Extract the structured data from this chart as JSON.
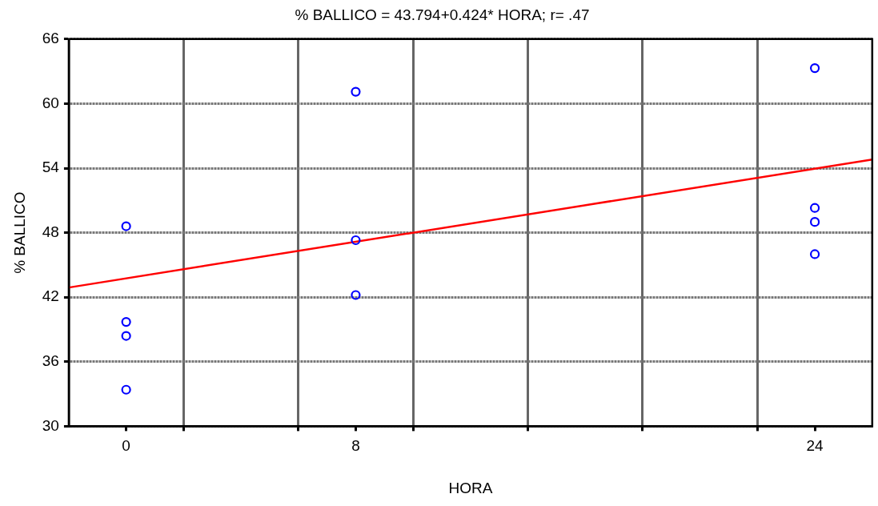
{
  "chart_data": {
    "type": "scatter",
    "title": "% BALLICO = 43.794+0.424* HORA; r= .47",
    "xlabel": "HORA",
    "ylabel": "% BALLICO",
    "xlim": [
      -2,
      26
    ],
    "xticks": [
      0,
      {
        "value": 2,
        "label": null
      },
      {
        "value": 6,
        "label": null
      },
      8,
      {
        "value": 10,
        "label": null
      },
      {
        "value": 14,
        "label": null
      },
      {
        "value": 18,
        "label": null
      },
      {
        "value": 22,
        "label": null
      },
      24
    ],
    "ylim": [
      30,
      66
    ],
    "yticks": [
      30,
      36,
      42,
      48,
      54,
      60,
      66
    ],
    "grid": true,
    "legend": false,
    "marker": "circle",
    "series": [
      {
        "type": "scatter",
        "color": "#0000ff",
        "x": [
          0,
          0,
          0,
          0,
          8,
          8,
          8,
          24,
          24,
          24,
          24
        ],
        "values": [
          33.4,
          38.4,
          39.7,
          48.6,
          61.1,
          47.3,
          42.2,
          63.3,
          50.3,
          49.0,
          46.0
        ]
      },
      {
        "type": "line",
        "color": "#ff0000",
        "x": [
          -2,
          26
        ],
        "values": [
          42.9,
          54.8
        ],
        "marker": "none",
        "line_style": "solid"
      }
    ]
  }
}
